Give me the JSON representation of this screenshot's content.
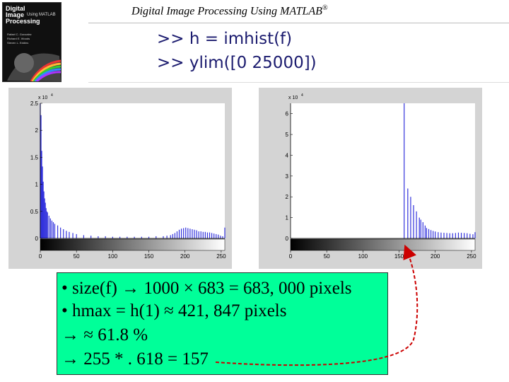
{
  "book": {
    "title": "Digital\nImage\nProcessing",
    "subtitle": "Using MATLAB",
    "authors": "Rafael C. Gonzalez\nRichard E. Woods\nSteven L. Eddins"
  },
  "header": {
    "title": "Digital Image Processing Using MATLAB",
    "trademark": "®"
  },
  "commands": [
    ">> h = imhist(f)",
    ">> ylim([0 25000])"
  ],
  "chart_data": [
    {
      "type": "bar",
      "title": "",
      "xlabel": "",
      "ylabel": "",
      "y_exponent_label": "x 10",
      "y_exponent_power": "4",
      "xlim": [
        0,
        255
      ],
      "ylim": [
        0,
        2.5
      ],
      "y_ticks": [
        "0",
        "0.5",
        "1",
        "1.5",
        "2",
        "2.5"
      ],
      "x_ticks": [
        "0",
        "50",
        "100",
        "150",
        "200",
        "250"
      ],
      "colorbar": "gray",
      "grid": false,
      "bins": [
        {
          "x": 0,
          "y": 2.5
        },
        {
          "x": 1,
          "y": 2.28
        },
        {
          "x": 2,
          "y": 1.62
        },
        {
          "x": 3,
          "y": 1.33
        },
        {
          "x": 4,
          "y": 1.05
        },
        {
          "x": 5,
          "y": 0.87
        },
        {
          "x": 6,
          "y": 0.74
        },
        {
          "x": 7,
          "y": 0.66
        },
        {
          "x": 8,
          "y": 0.56
        },
        {
          "x": 9,
          "y": 0.5
        },
        {
          "x": 10,
          "y": 0.48
        },
        {
          "x": 12,
          "y": 0.42
        },
        {
          "x": 14,
          "y": 0.37
        },
        {
          "x": 16,
          "y": 0.33
        },
        {
          "x": 18,
          "y": 0.3
        },
        {
          "x": 20,
          "y": 0.27
        },
        {
          "x": 24,
          "y": 0.24
        },
        {
          "x": 28,
          "y": 0.2
        },
        {
          "x": 32,
          "y": 0.17
        },
        {
          "x": 36,
          "y": 0.14
        },
        {
          "x": 40,
          "y": 0.12
        },
        {
          "x": 45,
          "y": 0.1
        },
        {
          "x": 50,
          "y": 0.08
        },
        {
          "x": 60,
          "y": 0.06
        },
        {
          "x": 70,
          "y": 0.05
        },
        {
          "x": 80,
          "y": 0.04
        },
        {
          "x": 90,
          "y": 0.04
        },
        {
          "x": 100,
          "y": 0.03
        },
        {
          "x": 110,
          "y": 0.03
        },
        {
          "x": 120,
          "y": 0.03
        },
        {
          "x": 130,
          "y": 0.03
        },
        {
          "x": 140,
          "y": 0.03
        },
        {
          "x": 150,
          "y": 0.03
        },
        {
          "x": 160,
          "y": 0.04
        },
        {
          "x": 170,
          "y": 0.04
        },
        {
          "x": 175,
          "y": 0.05
        },
        {
          "x": 180,
          "y": 0.06
        },
        {
          "x": 183,
          "y": 0.08
        },
        {
          "x": 186,
          "y": 0.1
        },
        {
          "x": 189,
          "y": 0.13
        },
        {
          "x": 192,
          "y": 0.16
        },
        {
          "x": 195,
          "y": 0.18
        },
        {
          "x": 198,
          "y": 0.19
        },
        {
          "x": 201,
          "y": 0.2
        },
        {
          "x": 204,
          "y": 0.19
        },
        {
          "x": 207,
          "y": 0.18
        },
        {
          "x": 210,
          "y": 0.17
        },
        {
          "x": 213,
          "y": 0.16
        },
        {
          "x": 216,
          "y": 0.15
        },
        {
          "x": 219,
          "y": 0.13
        },
        {
          "x": 222,
          "y": 0.13
        },
        {
          "x": 225,
          "y": 0.12
        },
        {
          "x": 228,
          "y": 0.12
        },
        {
          "x": 231,
          "y": 0.11
        },
        {
          "x": 234,
          "y": 0.11
        },
        {
          "x": 237,
          "y": 0.1
        },
        {
          "x": 240,
          "y": 0.09
        },
        {
          "x": 243,
          "y": 0.08
        },
        {
          "x": 246,
          "y": 0.07
        },
        {
          "x": 249,
          "y": 0.05
        },
        {
          "x": 252,
          "y": 0.04
        },
        {
          "x": 255,
          "y": 0.2
        }
      ]
    },
    {
      "type": "bar",
      "title": "",
      "xlabel": "",
      "ylabel": "",
      "y_exponent_label": "x 10",
      "y_exponent_power": "4",
      "xlim": [
        0,
        255
      ],
      "ylim": [
        0,
        6.5
      ],
      "y_ticks": [
        "0",
        "1",
        "2",
        "3",
        "4",
        "5",
        "6"
      ],
      "x_ticks": [
        "0",
        "50",
        "100",
        "150",
        "200",
        "250"
      ],
      "colorbar": "gray",
      "grid": false,
      "bins": [
        {
          "x": 157,
          "y": 6.5
        },
        {
          "x": 162,
          "y": 2.4
        },
        {
          "x": 166,
          "y": 2.0
        },
        {
          "x": 170,
          "y": 1.6
        },
        {
          "x": 174,
          "y": 1.3
        },
        {
          "x": 178,
          "y": 1.0
        },
        {
          "x": 180,
          "y": 0.9
        },
        {
          "x": 183,
          "y": 0.78
        },
        {
          "x": 186,
          "y": 0.62
        },
        {
          "x": 188,
          "y": 0.5
        },
        {
          "x": 191,
          "y": 0.45
        },
        {
          "x": 194,
          "y": 0.4
        },
        {
          "x": 197,
          "y": 0.36
        },
        {
          "x": 200,
          "y": 0.33
        },
        {
          "x": 204,
          "y": 0.3
        },
        {
          "x": 208,
          "y": 0.28
        },
        {
          "x": 212,
          "y": 0.27
        },
        {
          "x": 216,
          "y": 0.26
        },
        {
          "x": 220,
          "y": 0.25
        },
        {
          "x": 224,
          "y": 0.25
        },
        {
          "x": 228,
          "y": 0.26
        },
        {
          "x": 232,
          "y": 0.28
        },
        {
          "x": 236,
          "y": 0.27
        },
        {
          "x": 240,
          "y": 0.26
        },
        {
          "x": 244,
          "y": 0.25
        },
        {
          "x": 248,
          "y": 0.22
        },
        {
          "x": 252,
          "y": 0.2
        },
        {
          "x": 255,
          "y": 0.3
        }
      ]
    }
  ],
  "notes": [
    "• size(f) → 1000 × 683 = 683, 000 pixels",
    "• hmax = h(1) ≈ 421, 847 pixels",
    "→ ≈ 61.8 %",
    "→ 255 * . 618 = 157"
  ],
  "colors": {
    "bars": "#3333dd",
    "note_bg": "#00ff99",
    "arrow": "#cc0000"
  }
}
